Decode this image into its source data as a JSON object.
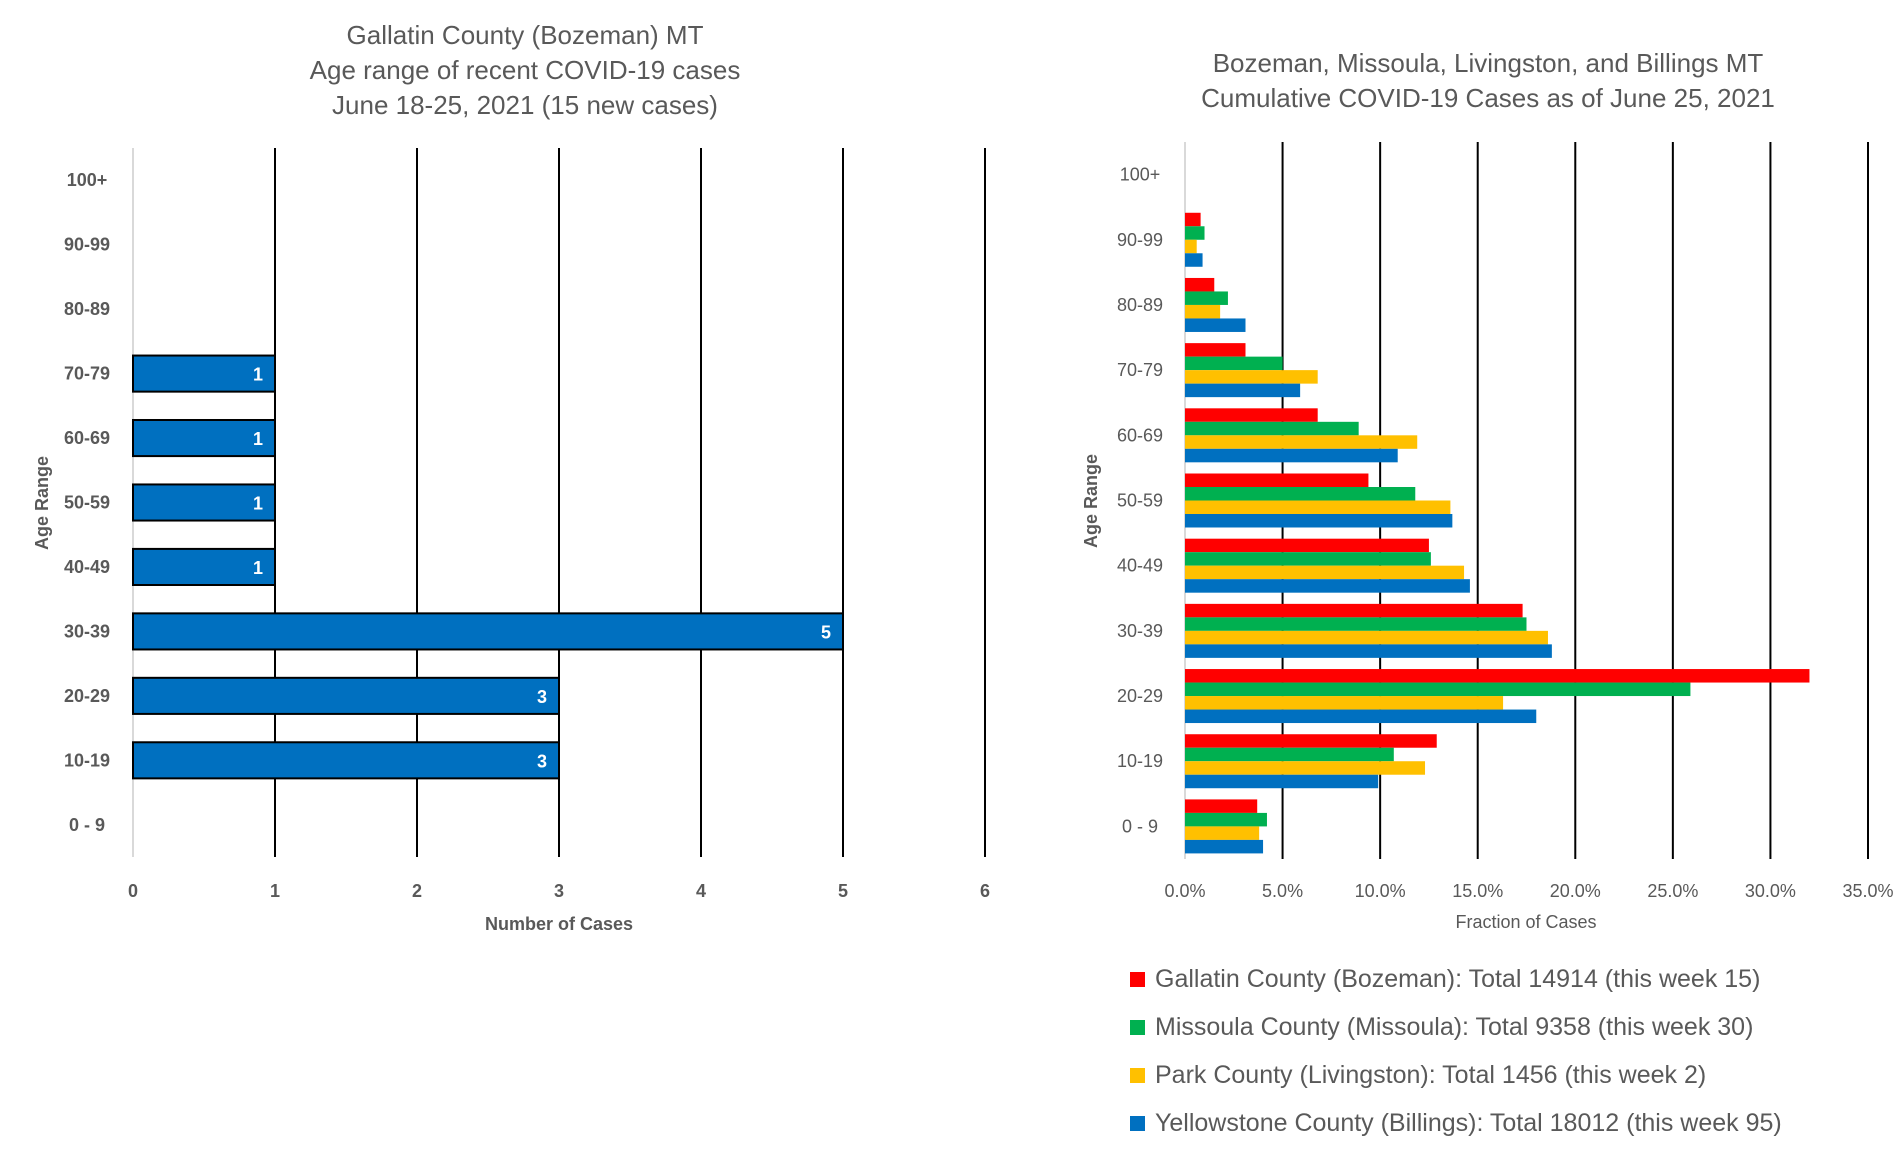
{
  "chart_data": [
    {
      "type": "bar",
      "orientation": "horizontal",
      "title": [
        "Gallatin County (Bozeman) MT",
        "Age range of recent COVID-19 cases",
        "June 18-25, 2021 (15 new cases)"
      ],
      "categories": [
        "0 - 9",
        "10-19",
        "20-29",
        "30-39",
        "40-49",
        "50-59",
        "60-69",
        "70-79",
        "80-89",
        "90-99",
        "100+"
      ],
      "values": [
        0,
        3,
        3,
        5,
        1,
        1,
        1,
        1,
        0,
        0,
        0
      ],
      "data_labels": [
        "",
        "3",
        "3",
        "5",
        "1",
        "1",
        "1",
        "1",
        "",
        "",
        ""
      ],
      "xlabel": "Number of Cases",
      "ylabel": "Age Range",
      "xlim": [
        0,
        6
      ],
      "xticks": [
        "0",
        "1",
        "2",
        "3",
        "4",
        "5",
        "6"
      ],
      "grid": "vertical",
      "bar_color": "#0070C0"
    },
    {
      "type": "bar",
      "orientation": "horizontal",
      "title": [
        "Bozeman, Missoula, Livingston, and Billings MT",
        "Cumulative COVID-19 Cases as of June 25, 2021"
      ],
      "categories": [
        "0 - 9",
        "10-19",
        "20-29",
        "30-39",
        "40-49",
        "50-59",
        "60-69",
        "70-79",
        "80-89",
        "90-99",
        "100+"
      ],
      "series": [
        {
          "name": "Gallatin County (Bozeman): Total 14914 (this week 15)",
          "color": "#FF0000",
          "values": [
            3.7,
            12.9,
            32.0,
            17.3,
            12.5,
            9.4,
            6.8,
            3.1,
            1.5,
            0.8,
            0.0
          ]
        },
        {
          "name": "Missoula County (Missoula): Total 9358 (this week 30)",
          "color": "#00B050",
          "values": [
            4.2,
            10.7,
            25.9,
            17.5,
            12.6,
            11.8,
            8.9,
            5.0,
            2.2,
            1.0,
            0.0
          ]
        },
        {
          "name": "Park County (Livingston): Total 1456 (this week 2)",
          "color": "#FFC000",
          "values": [
            3.8,
            12.3,
            16.3,
            18.6,
            14.3,
            13.6,
            11.9,
            6.8,
            1.8,
            0.6,
            0.0
          ]
        },
        {
          "name": "Yellowstone County (Billings): Total 18012 (this week 95)",
          "color": "#0070C0",
          "values": [
            4.0,
            9.9,
            18.0,
            18.8,
            14.6,
            13.7,
            10.9,
            5.9,
            3.1,
            0.9,
            0.0
          ]
        }
      ],
      "xlabel": "Fraction of Cases",
      "ylabel": "Age Range",
      "xlim": [
        0,
        35
      ],
      "xticks": [
        "0.0%",
        "5.0%",
        "10.0%",
        "15.0%",
        "20.0%",
        "25.0%",
        "30.0%",
        "35.0%"
      ],
      "grid": "vertical",
      "legend_position": "bottom"
    }
  ]
}
